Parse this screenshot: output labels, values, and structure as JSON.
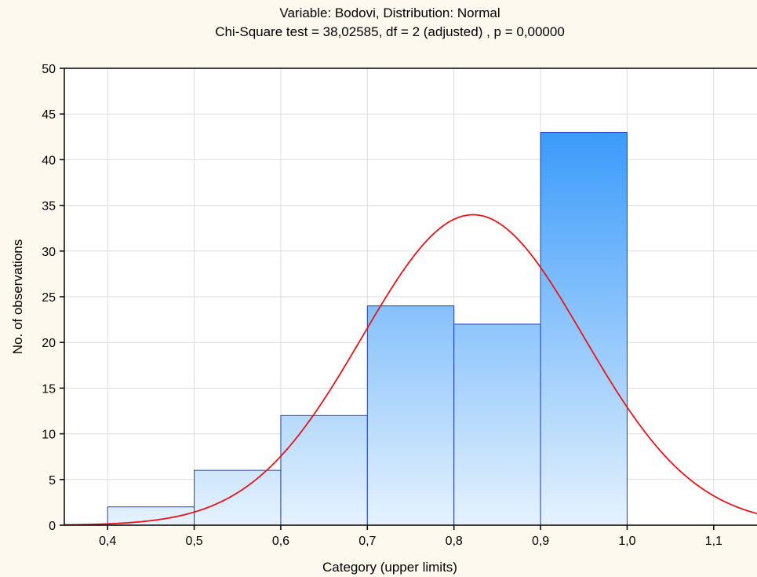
{
  "chart_data": {
    "type": "bar",
    "title": "Variable: Bodovi, Distribution: Normal",
    "subtitle": "Chi-Square test = 38,02585, df = 2 (adjusted) , p = 0,00000",
    "xlabel": "Category (upper limits)",
    "ylabel": "No. of observations",
    "xlim": [
      0.35,
      1.15
    ],
    "ylim": [
      0,
      50
    ],
    "x_ticks": [
      0.4,
      0.5,
      0.6,
      0.7,
      0.8,
      0.9,
      1.0,
      1.1
    ],
    "x_tick_labels": [
      "0,4",
      "0,5",
      "0,6",
      "0,7",
      "0,8",
      "0,9",
      "1,0",
      "1,1"
    ],
    "y_ticks": [
      0,
      5,
      10,
      15,
      20,
      25,
      30,
      35,
      40,
      45,
      50
    ],
    "grid": true,
    "bins": [
      {
        "from": 0.4,
        "to": 0.5,
        "count": 2
      },
      {
        "from": 0.5,
        "to": 0.6,
        "count": 6
      },
      {
        "from": 0.6,
        "to": 0.7,
        "count": 12
      },
      {
        "from": 0.7,
        "to": 0.8,
        "count": 24
      },
      {
        "from": 0.8,
        "to": 0.9,
        "count": 22
      },
      {
        "from": 0.9,
        "to": 1.0,
        "count": 43
      }
    ],
    "fit": {
      "distribution": "Normal",
      "mean": 0.822,
      "sd": 0.128,
      "n": 109,
      "bin_width": 0.1,
      "color": "#e8141a"
    },
    "bar_fill_top": "#1e8cfa",
    "bar_fill_bottom": "#e6f2fd",
    "bar_stroke": "#1e3fc0"
  }
}
